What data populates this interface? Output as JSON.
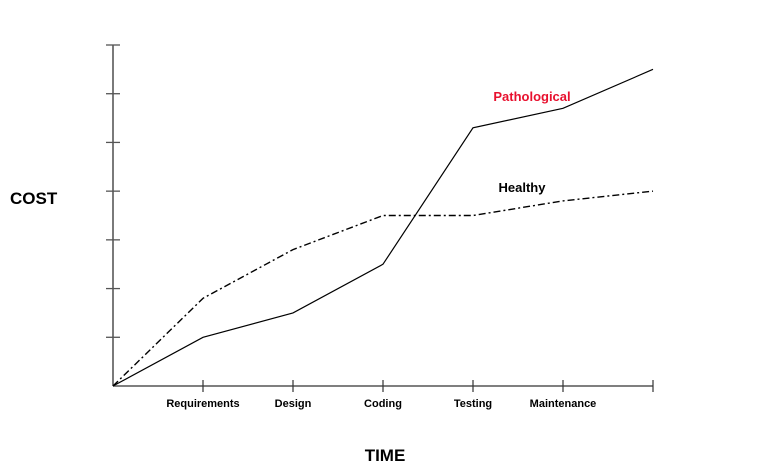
{
  "chart_data": {
    "type": "line",
    "title": "",
    "xlabel": "TIME",
    "ylabel": "COST",
    "categories": [
      "",
      "Requirements",
      "Design",
      "Coding",
      "Testing",
      "Maintenance",
      ""
    ],
    "y_ticks": 7,
    "ylim": [
      0,
      7
    ],
    "grid": false,
    "series": [
      {
        "name": "Pathological",
        "label_color": "#e8102e",
        "line_style": "solid",
        "values": [
          0,
          1,
          1.5,
          2.5,
          5.3,
          5.7,
          6.5
        ]
      },
      {
        "name": "Healthy",
        "label_color": "#000000",
        "line_style": "dash-dot",
        "values": [
          0,
          1.8,
          2.8,
          3.5,
          3.5,
          3.8,
          4.0
        ]
      }
    ]
  }
}
